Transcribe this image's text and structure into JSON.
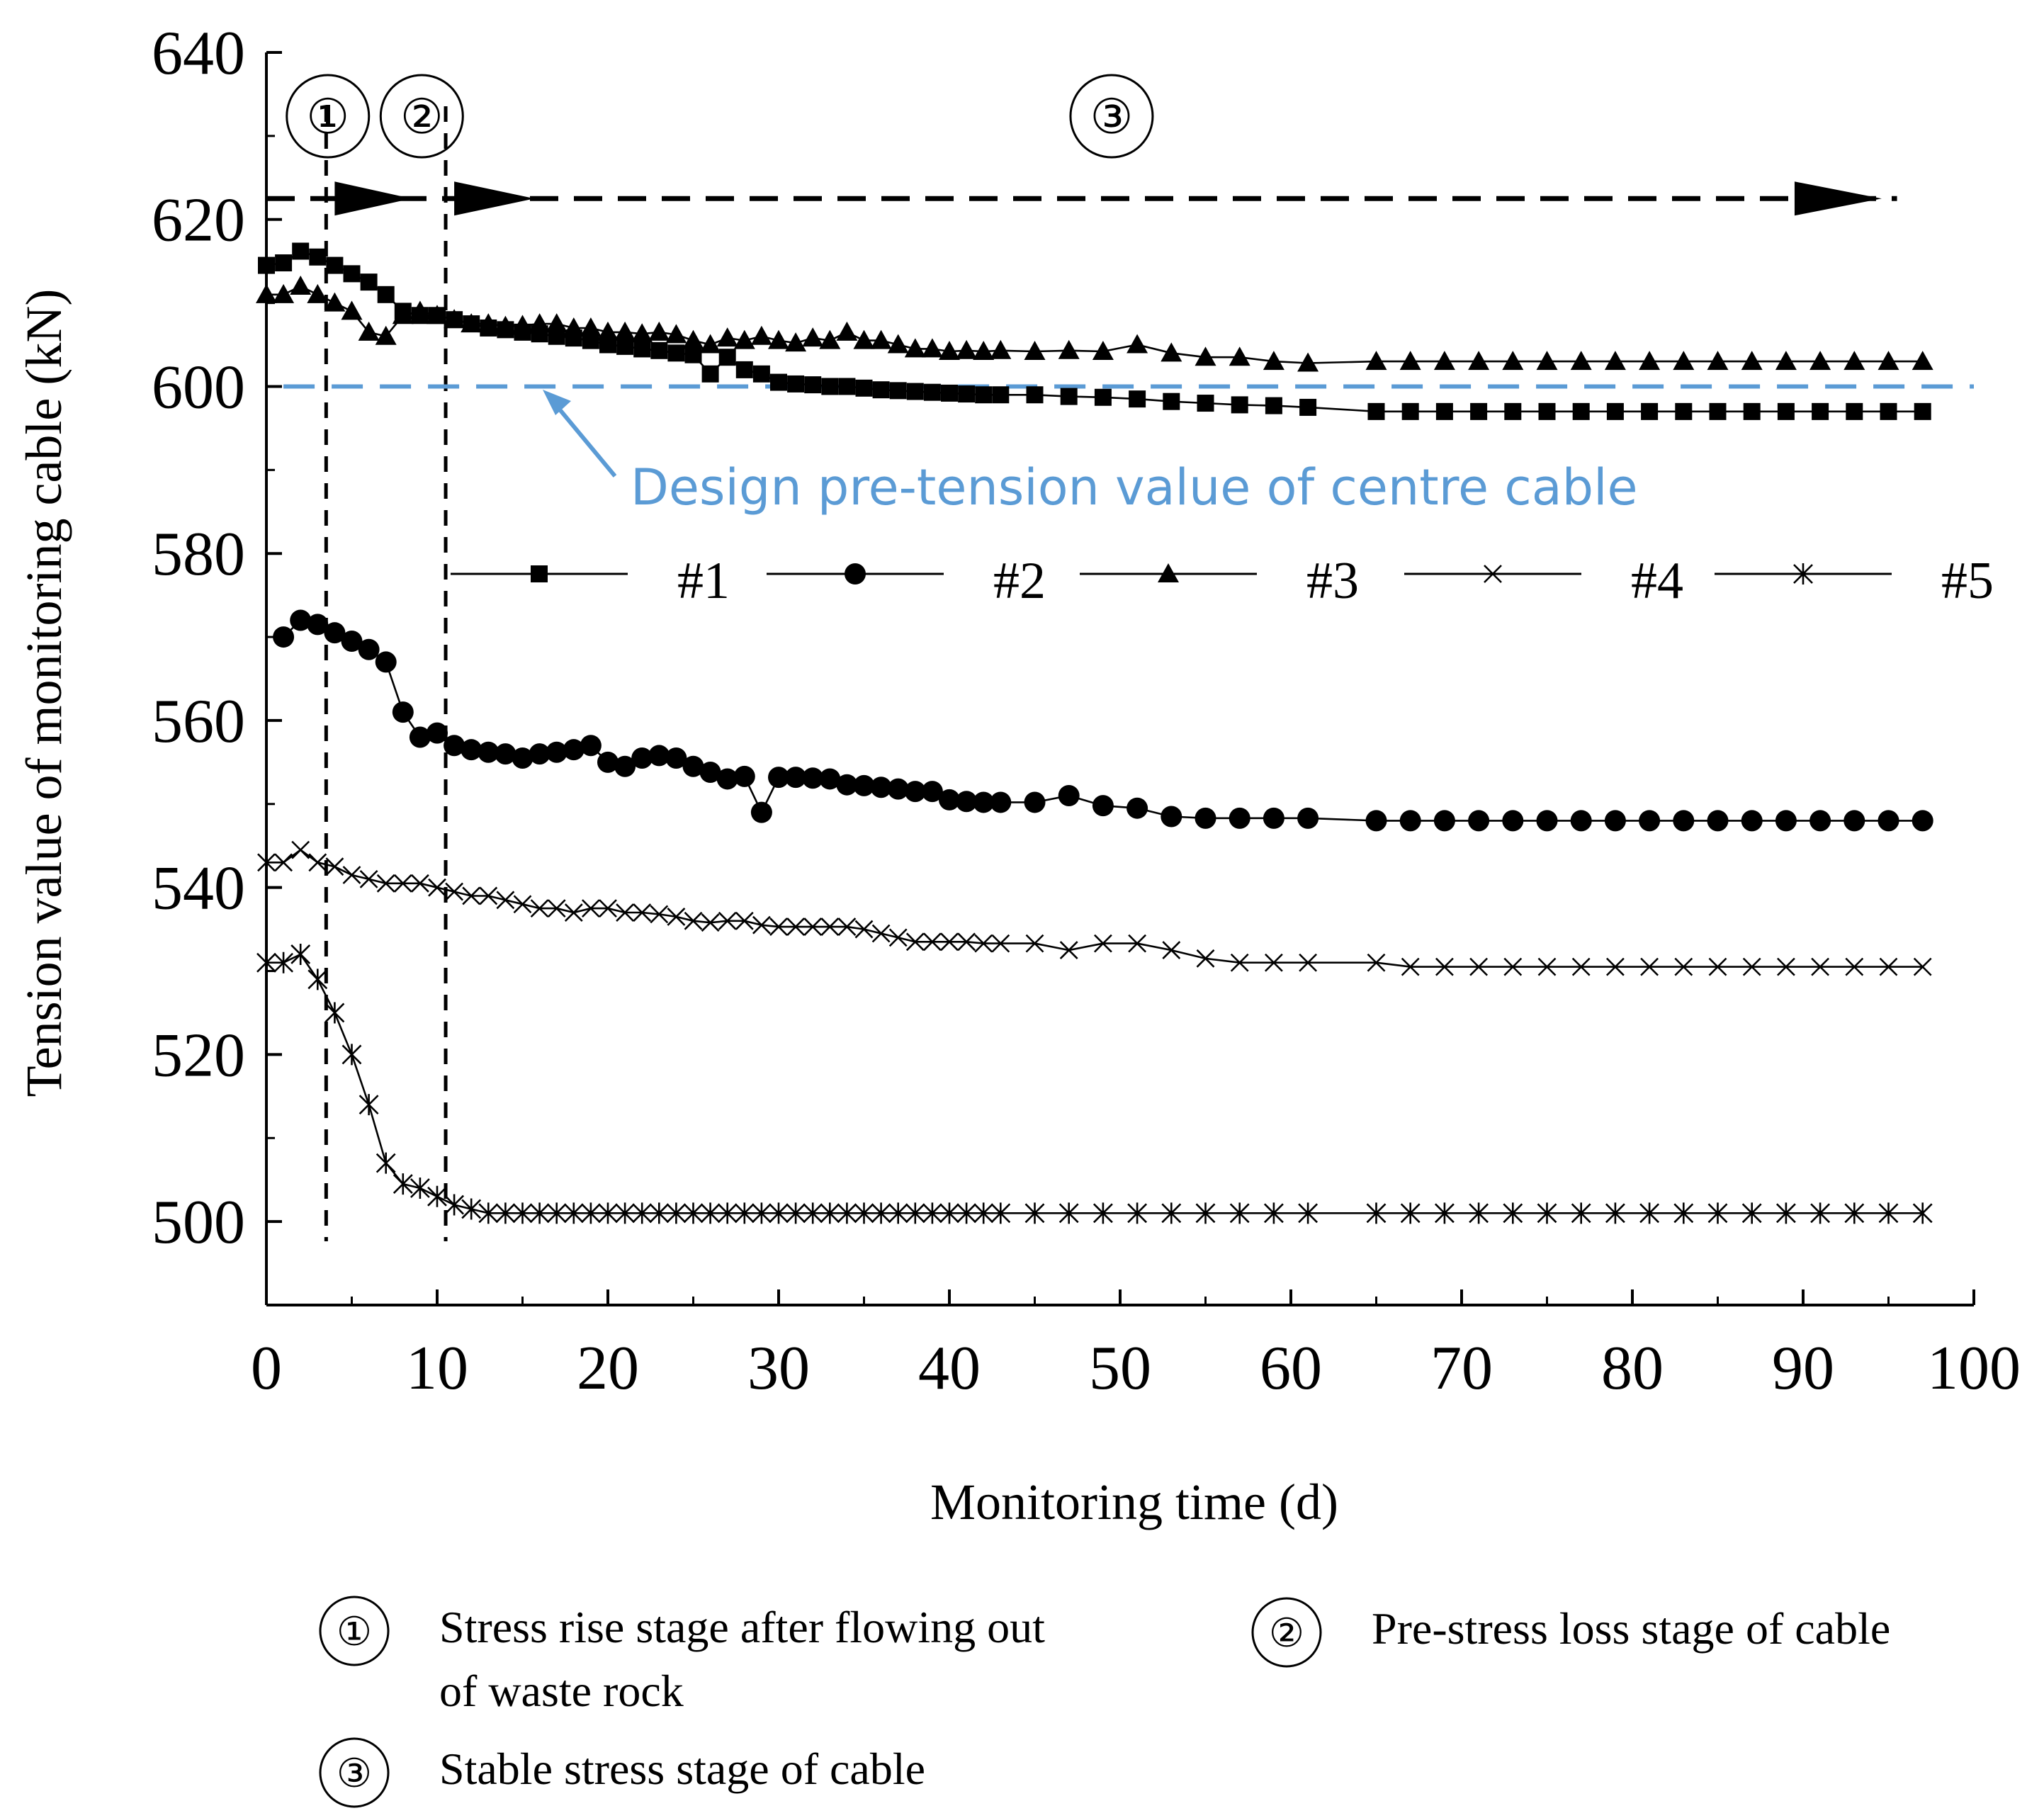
{
  "chart_data": {
    "type": "line",
    "xlabel": "Monitoring time (d)",
    "ylabel": "Tension value of monitoring cable (kN)",
    "xlim": [
      0,
      100
    ],
    "ylim": [
      490,
      640
    ],
    "x_ticks": [
      "0",
      "10",
      "20",
      "30",
      "40",
      "50",
      "60",
      "70",
      "80",
      "90",
      "100"
    ],
    "y_ticks": [
      "500",
      "520",
      "540",
      "560",
      "580",
      "600",
      "620",
      "640"
    ],
    "grid": false,
    "legend_position": "inside-middle",
    "series": [
      {
        "name": "#1",
        "marker": "square",
        "x": [
          0,
          1,
          2,
          3,
          4,
          5,
          6,
          7,
          8,
          9,
          10,
          11,
          12,
          13,
          14,
          15,
          16,
          17,
          18,
          19,
          20,
          21,
          22,
          23,
          24,
          25,
          26,
          27,
          28,
          29,
          30,
          31,
          32,
          33,
          34,
          35,
          36,
          37,
          38,
          39,
          40,
          41,
          42,
          43,
          45,
          47,
          49,
          51,
          53,
          55,
          57,
          59,
          61,
          65,
          67,
          69,
          71,
          73,
          75,
          77,
          79,
          81,
          83,
          85,
          87,
          89,
          91,
          93,
          95,
          97
        ],
        "y": [
          614.5,
          614.8,
          616.2,
          615.5,
          614.5,
          613.5,
          612.5,
          611,
          609,
          608.5,
          608.5,
          608,
          607.5,
          607,
          606.8,
          606.5,
          606.3,
          606,
          605.8,
          605.5,
          605,
          604.8,
          604.5,
          604.3,
          604,
          603.8,
          601.5,
          603.5,
          602,
          601.5,
          600.5,
          600.3,
          600.2,
          600,
          600,
          599.8,
          599.6,
          599.5,
          599.4,
          599.3,
          599.2,
          599.1,
          599,
          599,
          599,
          598.8,
          598.7,
          598.5,
          598.2,
          598,
          597.8,
          597.7,
          597.5,
          597,
          597,
          597,
          597,
          597,
          597,
          597,
          597,
          597,
          597,
          597,
          597,
          597,
          597,
          597,
          597,
          597
        ]
      },
      {
        "name": "#2",
        "marker": "circle",
        "x": [
          1,
          2,
          3,
          4,
          5,
          6,
          7,
          8,
          9,
          10,
          11,
          12,
          13,
          14,
          15,
          16,
          17,
          18,
          19,
          20,
          21,
          22,
          23,
          24,
          25,
          26,
          27,
          28,
          29,
          30,
          31,
          32,
          33,
          34,
          35,
          36,
          37,
          38,
          39,
          40,
          41,
          42,
          43,
          45,
          47,
          49,
          51,
          53,
          55,
          57,
          59,
          61,
          65,
          67,
          69,
          71,
          73,
          75,
          77,
          79,
          81,
          83,
          85,
          87,
          89,
          91,
          93,
          95,
          97
        ],
        "y": [
          570,
          572,
          571.5,
          570.5,
          569.5,
          568.5,
          567,
          561,
          558,
          558.5,
          557,
          556.5,
          556.2,
          556,
          555.5,
          556,
          556.2,
          556.5,
          557,
          555,
          554.5,
          555.5,
          555.8,
          555.5,
          554.5,
          553.8,
          553,
          553.3,
          549,
          553.2,
          553.2,
          553.1,
          553,
          552.3,
          552.2,
          552,
          551.8,
          551.5,
          551.5,
          550.5,
          550.3,
          550.2,
          550.2,
          550.2,
          551,
          549.8,
          549.5,
          548.5,
          548.3,
          548.3,
          548.3,
          548.3,
          548,
          548,
          548,
          548,
          548,
          548,
          548,
          548,
          548,
          548,
          548,
          548,
          548,
          548,
          548,
          548,
          548
        ]
      },
      {
        "name": "#3",
        "marker": "triangle",
        "x": [
          0,
          1,
          2,
          3,
          4,
          5,
          6,
          7,
          8,
          9,
          10,
          11,
          12,
          13,
          14,
          15,
          16,
          17,
          18,
          19,
          20,
          21,
          22,
          23,
          24,
          25,
          26,
          27,
          28,
          29,
          30,
          31,
          32,
          33,
          34,
          35,
          36,
          37,
          38,
          39,
          40,
          41,
          42,
          43,
          45,
          47,
          49,
          51,
          53,
          55,
          57,
          59,
          61,
          65,
          67,
          69,
          71,
          73,
          75,
          77,
          79,
          81,
          83,
          85,
          87,
          89,
          91,
          93,
          95,
          97
        ],
        "y": [
          611,
          611,
          612,
          611,
          610,
          609,
          606.5,
          606,
          608.5,
          609,
          608.5,
          608,
          607.5,
          607.5,
          607.2,
          607.3,
          607.5,
          607.5,
          607,
          607,
          606.5,
          606.5,
          606.3,
          606.5,
          606.2,
          605.5,
          605,
          605.8,
          605.5,
          606,
          605.5,
          605.2,
          605.8,
          605.5,
          606.5,
          605.5,
          605.5,
          605,
          604.5,
          604.5,
          604.2,
          604.3,
          604.2,
          604.3,
          604.2,
          604.3,
          604.2,
          605,
          604,
          603.5,
          603.5,
          603,
          602.8,
          603,
          603,
          603,
          603,
          603,
          603,
          603,
          603,
          603,
          603,
          603,
          603,
          603,
          603,
          603,
          603,
          603
        ]
      },
      {
        "name": "#4",
        "marker": "x",
        "x": [
          0,
          1,
          2,
          3,
          4,
          5,
          6,
          7,
          8,
          9,
          10,
          11,
          12,
          13,
          14,
          15,
          16,
          17,
          18,
          19,
          20,
          21,
          22,
          23,
          24,
          25,
          26,
          27,
          28,
          29,
          30,
          31,
          32,
          33,
          34,
          35,
          36,
          37,
          38,
          39,
          40,
          41,
          42,
          43,
          45,
          47,
          49,
          51,
          53,
          55,
          57,
          59,
          61,
          65,
          67,
          69,
          71,
          73,
          75,
          77,
          79,
          81,
          83,
          85,
          87,
          89,
          91,
          93,
          95,
          97
        ],
        "y": [
          543,
          543,
          544.5,
          543,
          542.5,
          541.5,
          541,
          540.5,
          540.5,
          540.5,
          540,
          539.5,
          539,
          539,
          538.5,
          538,
          537.5,
          537.5,
          537,
          537.5,
          537.5,
          537,
          537,
          536.8,
          536.5,
          536,
          535.8,
          536,
          536,
          535.5,
          535.3,
          535.3,
          535.3,
          535.3,
          535.3,
          535,
          534.5,
          534,
          533.5,
          533.5,
          533.5,
          533.5,
          533.3,
          533.3,
          533.3,
          532.5,
          533.3,
          533.3,
          532.5,
          531.5,
          531,
          531,
          531,
          531,
          530.5,
          530.5,
          530.5,
          530.5,
          530.5,
          530.5,
          530.5,
          530.5,
          530.5,
          530.5,
          530.5,
          530.5,
          530.5,
          530.5,
          530.5,
          530.5
        ]
      },
      {
        "name": "#5",
        "marker": "star",
        "x": [
          0,
          1,
          2,
          3,
          4,
          5,
          6,
          7,
          8,
          9,
          10,
          11,
          12,
          13,
          14,
          15,
          16,
          17,
          18,
          19,
          20,
          21,
          22,
          23,
          24,
          25,
          26,
          27,
          28,
          29,
          30,
          31,
          32,
          33,
          34,
          35,
          36,
          37,
          38,
          39,
          40,
          41,
          42,
          43,
          45,
          47,
          49,
          51,
          53,
          55,
          57,
          59,
          61,
          65,
          67,
          69,
          71,
          73,
          75,
          77,
          79,
          81,
          83,
          85,
          87,
          89,
          91,
          93,
          95,
          97
        ],
        "y": [
          531,
          531,
          532,
          529,
          525,
          520,
          514,
          507,
          504.5,
          504,
          503,
          502,
          501.5,
          501,
          501,
          501,
          501,
          501,
          501,
          501,
          501,
          501,
          501,
          501,
          501,
          501,
          501,
          501,
          501,
          501,
          501,
          501,
          501,
          501,
          501,
          501,
          501,
          501,
          501,
          501,
          501,
          501,
          501,
          501,
          501,
          501,
          501,
          501,
          501,
          501,
          501,
          501,
          501,
          501,
          501,
          501,
          501,
          501,
          501,
          501,
          501,
          501,
          501,
          501,
          501,
          501,
          501,
          501,
          501,
          501
        ]
      }
    ],
    "reference_line": {
      "y": 600,
      "color": "#5b9bd5",
      "label": "Design pre-tension value of centre cable"
    },
    "stage_boundaries": [
      3.5,
      10.5
    ],
    "stage_labels": [
      {
        "num": "①",
        "x": 3.6
      },
      {
        "num": "②",
        "x": 9.1
      },
      {
        "num": "③",
        "x": 49.5
      }
    ],
    "stage_arrow_y": 622.5,
    "stage_notes": [
      {
        "num": "①",
        "line1": "Stress rise stage after flowing out",
        "line2": "of waste rock"
      },
      {
        "num": "②",
        "line1": "Pre-stress loss stage of cable",
        "line2": ""
      },
      {
        "num": "③",
        "line1": "Stable stress stage of cable",
        "line2": ""
      }
    ]
  }
}
